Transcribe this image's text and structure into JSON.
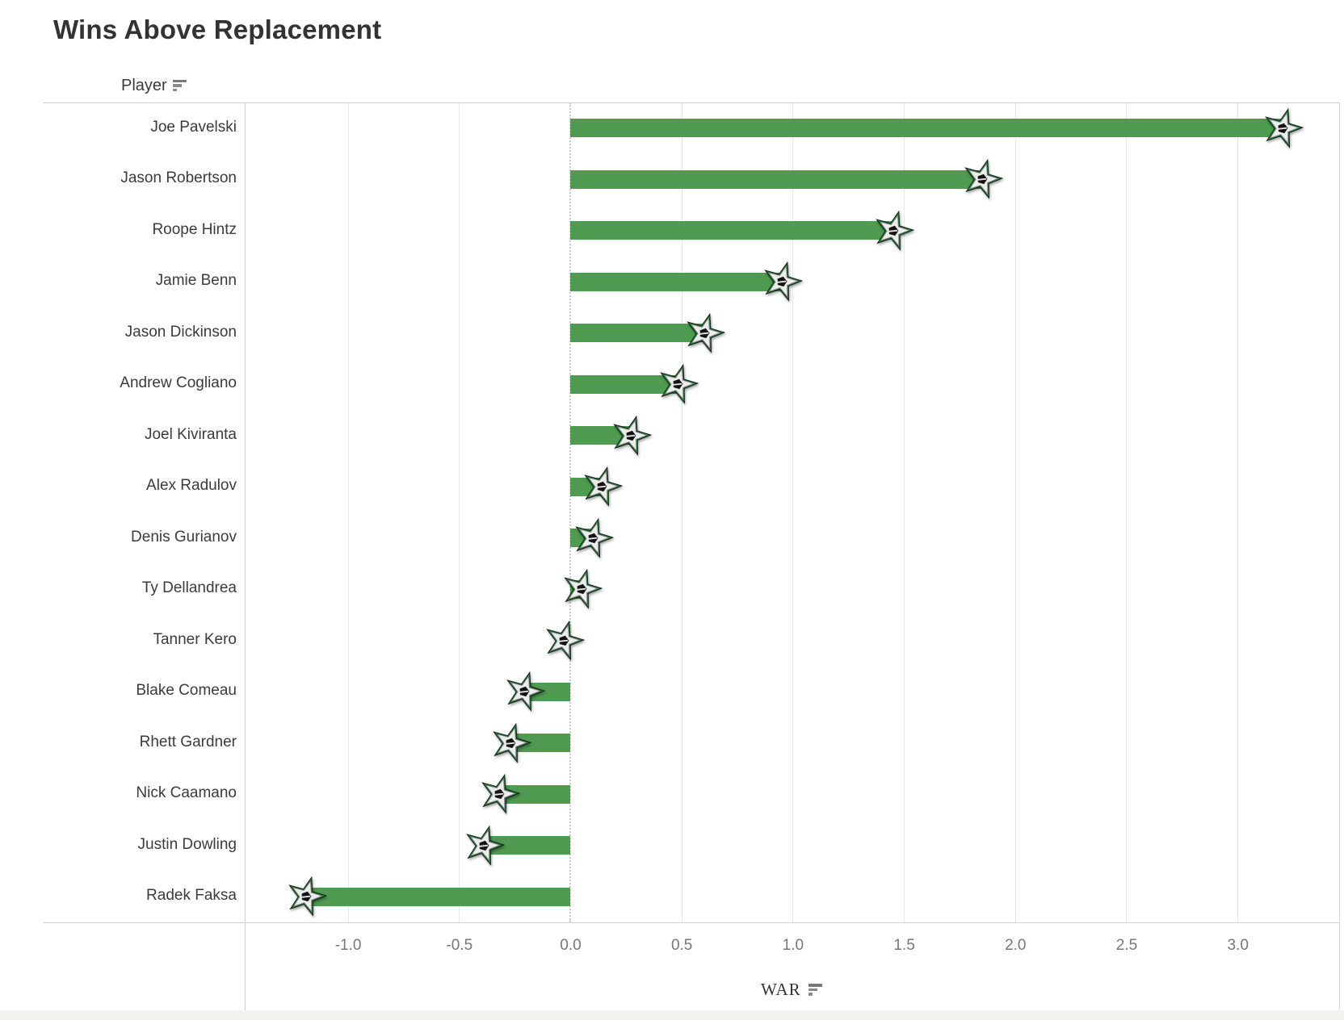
{
  "title": "Wins Above Replacement",
  "row_header": {
    "label": "Player",
    "sort_icon": "sort-descending-icon"
  },
  "x_axis": {
    "label": "WAR",
    "sort_icon": "sort-descending-icon",
    "min": -1.465,
    "max": 3.455,
    "zero_line_value": 0.0,
    "ticks": [
      {
        "label": "-1.0",
        "value": -1.0
      },
      {
        "label": "-0.5",
        "value": -0.5
      },
      {
        "label": "0.0",
        "value": 0.0
      },
      {
        "label": "0.5",
        "value": 0.5
      },
      {
        "label": "1.0",
        "value": 1.0
      },
      {
        "label": "1.5",
        "value": 1.5
      },
      {
        "label": "2.0",
        "value": 2.0
      },
      {
        "label": "2.5",
        "value": 2.5
      },
      {
        "label": "3.0",
        "value": 3.0
      }
    ]
  },
  "mark_icon": "dallas-stars-logo-icon",
  "colors": {
    "bar": "#4e9b51",
    "gridline": "#e7e7e7",
    "zero_line": "#c9c9c9",
    "border": "#d0d0d0",
    "title_text": "#333333",
    "label_text": "#3b3b3b",
    "tick_text": "#767676",
    "icon_gray": "#8a8a8a",
    "logo_outline": "#0e2016",
    "logo_green": "#2f6f3f",
    "logo_silver": "#ececec",
    "logo_core": "#141414",
    "footer_strip": "#f4f2ef"
  },
  "chart_data": {
    "type": "bar",
    "orientation": "horizontal",
    "title": "Wins Above Replacement",
    "xlabel": "WAR",
    "ylabel": "Player",
    "categories": [
      "Joe Pavelski",
      "Jason Robertson",
      "Roope Hintz",
      "Jamie Benn",
      "Jason Dickinson",
      "Andrew Cogliano",
      "Joel Kiviranta",
      "Alex Radulov",
      "Denis Gurianov",
      "Ty Dellandrea",
      "Tanner Kero",
      "Blake Comeau",
      "Rhett Gardner",
      "Nick Caamano",
      "Justin Dowling",
      "Radek Faksa"
    ],
    "values": [
      3.2,
      1.85,
      1.45,
      0.95,
      0.6,
      0.48,
      0.27,
      0.14,
      0.1,
      0.05,
      -0.03,
      -0.21,
      -0.27,
      -0.32,
      -0.39,
      -1.19
    ],
    "xlim": [
      -1.465,
      3.455
    ],
    "xticks": [
      -1.0,
      -0.5,
      0.0,
      0.5,
      1.0,
      1.5,
      2.0,
      2.5,
      3.0
    ],
    "grid": "vertical",
    "legend": "none",
    "bar_color": "#4e9b51",
    "point_marker": "dallas-stars-logo"
  }
}
